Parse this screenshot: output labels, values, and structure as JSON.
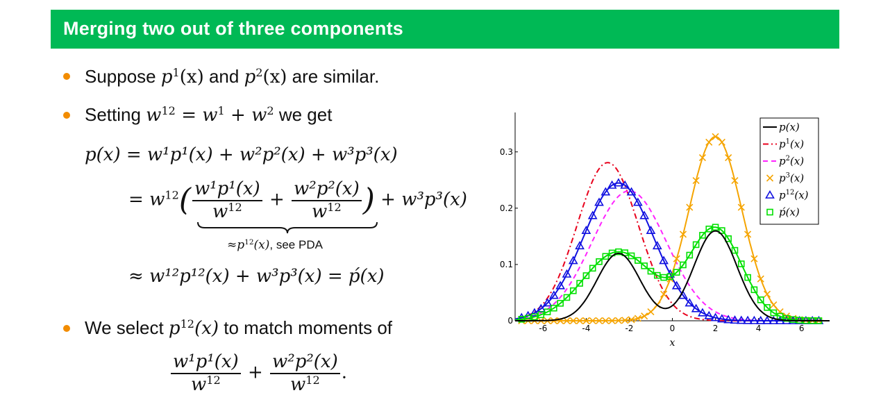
{
  "slide": {
    "title": "Merging two out of three components",
    "bullet1": {
      "pre": "Suppose ",
      "p": "p",
      "s1": "1",
      "arg": "(x)",
      "mid": " and ",
      "s2": "2",
      "post": " are similar."
    },
    "bullet2": {
      "pre": "Setting ",
      "eq": "w",
      "s12": "12",
      "w1s": "1",
      "w2s": "2",
      "post": " we get"
    },
    "eq1": {
      "lhs": "p(x) = ",
      "terms": "w¹p¹(x) + w²p²(x) + w³p³(x)"
    },
    "eq2": {
      "w12": "w",
      "s12": "12",
      "num1": "w¹p¹(x)",
      "num2": "w²p²(x)",
      "den": "w",
      "tail": "+ w³p³(x)"
    },
    "underbrace": {
      "approx": "≈",
      "p": "p",
      "s": "12",
      "arg": "(x)",
      "note": ", see PDA"
    },
    "eq3": {
      "text": "≈ w¹²p¹²(x) + w³p³(x) = ṕ(x)"
    },
    "bullet3": {
      "pre": "We select ",
      "p": "p",
      "s": "12",
      "arg": "(x)",
      "post": " to match moments of"
    },
    "eq4": {
      "num1": "w¹p¹(x)",
      "num2": "w²p²(x)",
      "den": "w",
      "s12": "12"
    }
  },
  "chart_data": {
    "type": "line",
    "xlabel": "x",
    "ylabel": "",
    "xlim": [
      -7.3,
      7.3
    ],
    "ylim": [
      0,
      0.37
    ],
    "xticks": [
      "-6",
      "-4",
      "-2",
      "0",
      "2",
      "4",
      "6"
    ],
    "yticks": [
      "0",
      "0.1",
      "0.2",
      "0.3"
    ],
    "legend_position": "top-right",
    "series": [
      {
        "name": "p(x)",
        "color": "#000000",
        "style": "solid",
        "marker": "none",
        "components": [
          {
            "w": 0.3,
            "mu": -2.5,
            "sigma": 1.0
          },
          {
            "w": 0.4,
            "mu": 2.0,
            "sigma": 1.0
          }
        ]
      },
      {
        "name": "p1(x)",
        "color": "#e8001c",
        "style": "dashdot",
        "marker": "none",
        "components": [
          {
            "w": 1.0,
            "mu": -3.0,
            "sigma": 1.42
          }
        ]
      },
      {
        "name": "p2(x)",
        "color": "#ff22ff",
        "style": "dashed",
        "marker": "none",
        "components": [
          {
            "w": 1.0,
            "mu": -2.0,
            "sigma": 1.73
          }
        ]
      },
      {
        "name": "p3(x)",
        "color": "#f5a400",
        "style": "solid",
        "marker": "x",
        "components": [
          {
            "w": 1.0,
            "mu": 2.0,
            "sigma": 1.22
          }
        ]
      },
      {
        "name": "p12(x)",
        "color": "#1010e0",
        "style": "solid",
        "marker": "triangle",
        "components": [
          {
            "w": 1.0,
            "mu": -2.5,
            "sigma": 1.63
          }
        ]
      },
      {
        "name": "ṕ(x)",
        "color": "#00e000",
        "style": "solid",
        "marker": "square",
        "components": [
          {
            "w": 0.5,
            "mu": -2.5,
            "sigma": 1.63
          },
          {
            "w": 0.5,
            "mu": 2.0,
            "sigma": 1.22
          }
        ]
      }
    ],
    "legend": [
      {
        "base": "p",
        "sup": "",
        "arg": "(x)"
      },
      {
        "base": "p",
        "sup": "1",
        "arg": "(x)"
      },
      {
        "base": "p",
        "sup": "2",
        "arg": "(x)"
      },
      {
        "base": "p",
        "sup": "3",
        "arg": "(x)"
      },
      {
        "base": "p",
        "sup": "12",
        "arg": "(x)"
      },
      {
        "base": "ṕ",
        "sup": "",
        "arg": "(x)"
      }
    ]
  }
}
